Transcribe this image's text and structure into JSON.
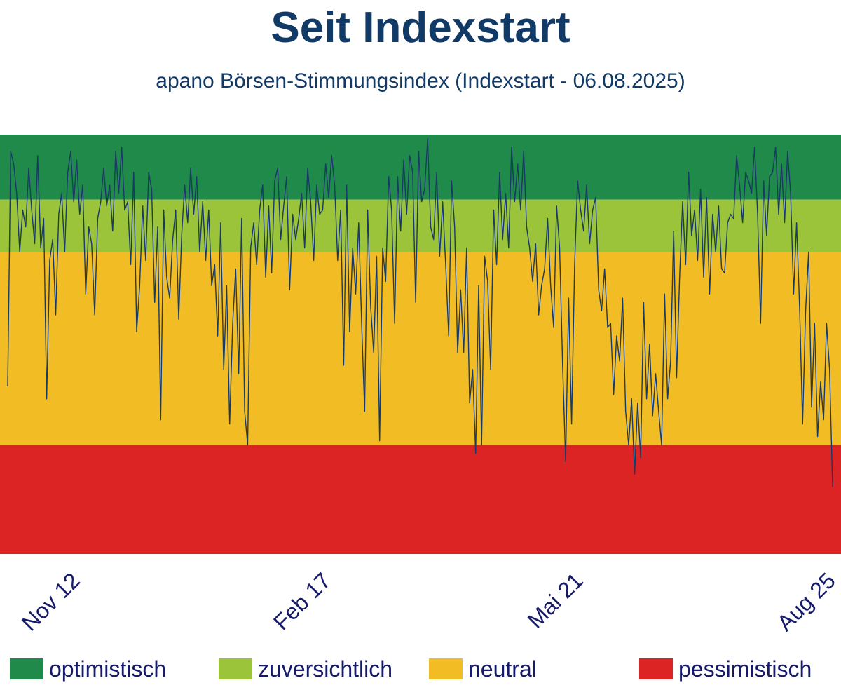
{
  "header": {
    "title": "Seit Indexstart",
    "subtitle": "apano Börsen-Stimmungsindex (Indexstart - 06.08.2025)"
  },
  "legend": [
    {
      "label": "optimistisch",
      "color": "#1f8a4a"
    },
    {
      "label": "zuversichtlich",
      "color": "#9bc43a"
    },
    {
      "label": "neutral",
      "color": "#f2bd24"
    },
    {
      "label": "pessimistisch",
      "color": "#dd2424"
    }
  ],
  "chart_data": {
    "type": "line",
    "title": "Seit Indexstart",
    "subtitle": "apano Börsen-Stimmungsindex (Indexstart - 06.08.2025)",
    "xlabel": "",
    "ylabel": "",
    "x_tick_labels": [
      "Nov 12",
      "Feb 17",
      "Mai 21",
      "Aug 25"
    ],
    "ylim": [
      0,
      1
    ],
    "grid": false,
    "legend_position": "bottom",
    "line_color": "#1a3a66",
    "zones": [
      {
        "label": "optimistisch",
        "color": "#1f8a4a",
        "range": [
          0.845,
          1.0
        ]
      },
      {
        "label": "zuversichtlich",
        "color": "#9bc43a",
        "range": [
          0.72,
          0.845
        ]
      },
      {
        "label": "neutral",
        "color": "#f2bd24",
        "range": [
          0.26,
          0.72
        ]
      },
      {
        "label": "pessimistisch",
        "color": "#dd2424",
        "range": [
          0.0,
          0.26
        ]
      }
    ],
    "series": [
      {
        "values": [
          0.4,
          0.96,
          0.93,
          0.86,
          0.72,
          0.82,
          0.78,
          0.92,
          0.82,
          0.74,
          0.95,
          0.73,
          0.8,
          0.37,
          0.7,
          0.75,
          0.57,
          0.81,
          0.86,
          0.72,
          0.91,
          0.96,
          0.84,
          0.94,
          0.81,
          0.88,
          0.62,
          0.78,
          0.74,
          0.57,
          0.8,
          0.84,
          0.92,
          0.83,
          0.88,
          0.77,
          0.96,
          0.86,
          0.97,
          0.82,
          0.84,
          0.69,
          0.91,
          0.53,
          0.64,
          0.83,
          0.7,
          0.91,
          0.87,
          0.6,
          0.78,
          0.32,
          0.82,
          0.66,
          0.61,
          0.75,
          0.82,
          0.56,
          0.76,
          0.88,
          0.79,
          0.92,
          0.81,
          0.9,
          0.72,
          0.84,
          0.7,
          0.82,
          0.64,
          0.69,
          0.52,
          0.79,
          0.44,
          0.64,
          0.31,
          0.55,
          0.68,
          0.43,
          0.8,
          0.34,
          0.26,
          0.73,
          0.79,
          0.69,
          0.82,
          0.88,
          0.66,
          0.83,
          0.67,
          0.89,
          0.92,
          0.75,
          0.83,
          0.9,
          0.63,
          0.81,
          0.75,
          0.8,
          0.86,
          0.73,
          0.92,
          0.84,
          0.7,
          0.88,
          0.81,
          0.82,
          0.93,
          0.85,
          0.95,
          0.88,
          0.7,
          0.82,
          0.45,
          0.88,
          0.53,
          0.73,
          0.62,
          0.79,
          0.55,
          0.34,
          0.82,
          0.59,
          0.48,
          0.71,
          0.27,
          0.73,
          0.65,
          0.9,
          0.82,
          0.55,
          0.9,
          0.77,
          0.94,
          0.81,
          0.95,
          0.91,
          0.6,
          0.96,
          0.84,
          0.87,
          0.99,
          0.78,
          0.75,
          0.91,
          0.71,
          0.84,
          0.69,
          0.52,
          0.89,
          0.78,
          0.48,
          0.63,
          0.48,
          0.73,
          0.36,
          0.44,
          0.24,
          0.64,
          0.26,
          0.71,
          0.65,
          0.44,
          0.82,
          0.69,
          0.91,
          0.75,
          0.86,
          0.73,
          0.97,
          0.84,
          0.93,
          0.82,
          0.96,
          0.78,
          0.73,
          0.65,
          0.74,
          0.57,
          0.64,
          0.68,
          0.8,
          0.64,
          0.54,
          0.83,
          0.73,
          0.45,
          0.22,
          0.61,
          0.31,
          0.69,
          0.89,
          0.82,
          0.77,
          0.88,
          0.74,
          0.82,
          0.85,
          0.63,
          0.58,
          0.68,
          0.54,
          0.55,
          0.38,
          0.52,
          0.46,
          0.61,
          0.34,
          0.26,
          0.37,
          0.19,
          0.36,
          0.23,
          0.6,
          0.37,
          0.5,
          0.33,
          0.43,
          0.34,
          0.26,
          0.62,
          0.37,
          0.46,
          0.77,
          0.42,
          0.66,
          0.84,
          0.69,
          0.91,
          0.76,
          0.82,
          0.7,
          0.87,
          0.66,
          0.85,
          0.62,
          0.81,
          0.72,
          0.83,
          0.68,
          0.67,
          0.79,
          0.81,
          0.8,
          0.95,
          0.88,
          0.79,
          0.91,
          0.89,
          0.86,
          0.97,
          0.81,
          0.55,
          0.89,
          0.76,
          0.9,
          0.91,
          0.97,
          0.81,
          0.93,
          0.79,
          0.96,
          0.86,
          0.62,
          0.79,
          0.59,
          0.31,
          0.58,
          0.72,
          0.35,
          0.55,
          0.28,
          0.41,
          0.32,
          0.55,
          0.44,
          0.16
        ]
      }
    ]
  }
}
